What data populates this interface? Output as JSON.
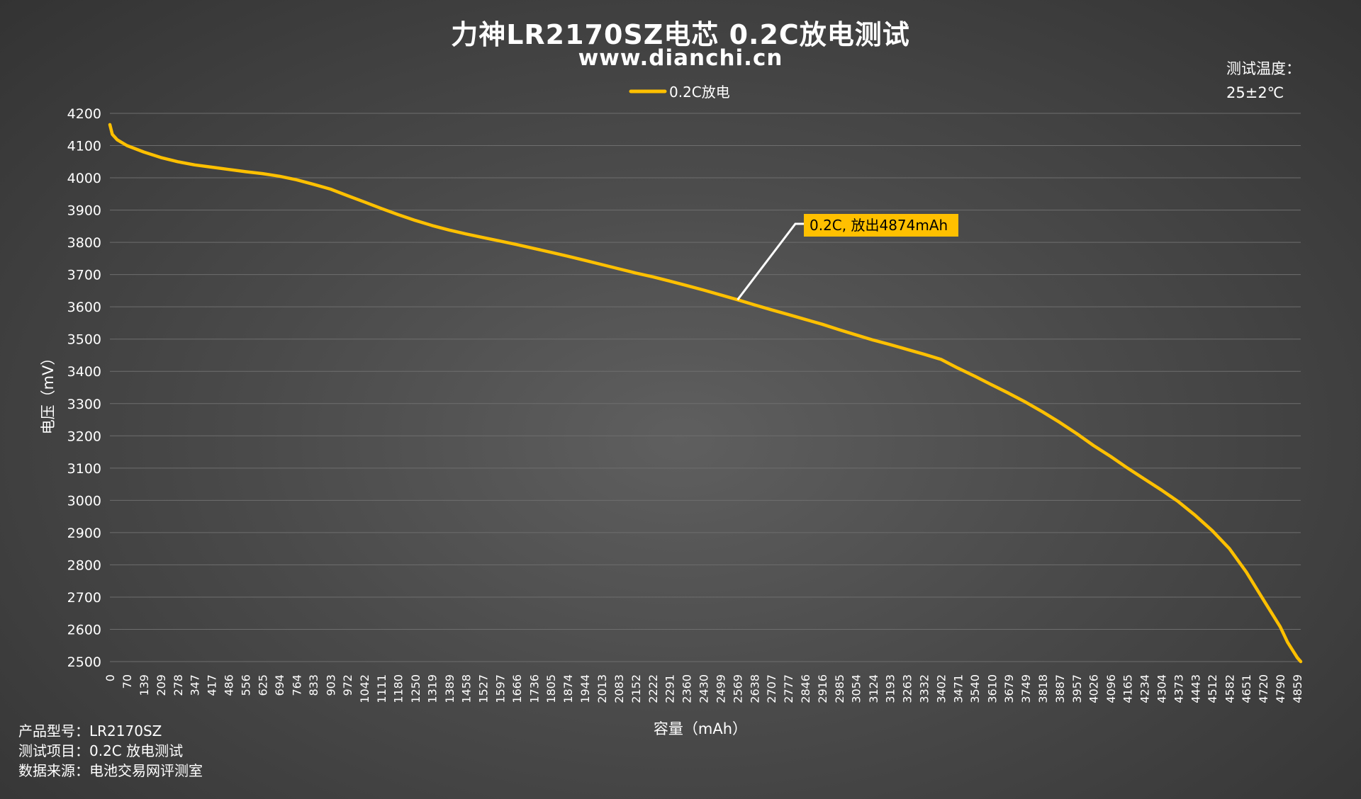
{
  "header": {
    "title": "力神LR2170SZ电芯 0.2C放电测试",
    "subtitle": "www.dianchi.cn"
  },
  "temperature": {
    "label": "测试温度：",
    "value": "25±2℃"
  },
  "info": [
    {
      "label": "产品型号：",
      "value": "LR2170SZ"
    },
    {
      "label": "测试项目：",
      "value": "0.2C 放电测试"
    },
    {
      "label": "数据来源：",
      "value": "电池交易网评测室"
    }
  ],
  "colors": {
    "series": "#ffc000",
    "grid": "#6e6e6e",
    "text": "#ffffff",
    "annotation_bg": "#ffc000",
    "annotation_text": "#000000"
  },
  "chart_data": {
    "type": "line",
    "title": "力神LR2170SZ电芯 0.2C放电测试",
    "xlabel": "容量（mAh）",
    "ylabel": "电压（mV）",
    "ylim": [
      2500,
      4200
    ],
    "xlim": [
      0,
      4874
    ],
    "grid": true,
    "legend_position": "top",
    "yticks": [
      2500,
      2600,
      2700,
      2800,
      2900,
      3000,
      3100,
      3200,
      3300,
      3400,
      3500,
      3600,
      3700,
      3800,
      3900,
      4000,
      4100,
      4200
    ],
    "xticks": [
      0,
      70,
      139,
      209,
      278,
      347,
      417,
      486,
      556,
      625,
      694,
      764,
      833,
      903,
      972,
      1042,
      1111,
      1180,
      1250,
      1319,
      1389,
      1458,
      1527,
      1597,
      1666,
      1736,
      1805,
      1874,
      1944,
      2013,
      2083,
      2152,
      2222,
      2291,
      2360,
      2430,
      2499,
      2569,
      2638,
      2707,
      2777,
      2846,
      2916,
      2985,
      3054,
      3124,
      3193,
      3263,
      3332,
      3402,
      3471,
      3540,
      3610,
      3679,
      3749,
      3818,
      3887,
      3957,
      4026,
      4096,
      4165,
      4234,
      4304,
      4373,
      4443,
      4512,
      4582,
      4651,
      4720,
      4790,
      4859
    ],
    "series": [
      {
        "name": "0.2C放电",
        "x": [
          0,
          10,
          30,
          70,
          139,
          209,
          278,
          347,
          417,
          486,
          556,
          625,
          694,
          764,
          833,
          903,
          972,
          1042,
          1111,
          1180,
          1250,
          1319,
          1389,
          1458,
          1527,
          1597,
          1666,
          1736,
          1805,
          1874,
          1944,
          2013,
          2083,
          2152,
          2222,
          2291,
          2360,
          2430,
          2499,
          2569,
          2638,
          2707,
          2777,
          2846,
          2916,
          2985,
          3054,
          3124,
          3193,
          3263,
          3332,
          3402,
          3471,
          3540,
          3610,
          3679,
          3749,
          3818,
          3887,
          3957,
          4026,
          4096,
          4165,
          4234,
          4304,
          4373,
          4443,
          4512,
          4582,
          4651,
          4720,
          4790,
          4820,
          4845,
          4860,
          4874
        ],
        "y": [
          4165,
          4135,
          4118,
          4100,
          4080,
          4063,
          4050,
          4040,
          4033,
          4026,
          4019,
          4013,
          4005,
          3994,
          3980,
          3965,
          3945,
          3925,
          3905,
          3886,
          3868,
          3852,
          3838,
          3826,
          3815,
          3804,
          3793,
          3781,
          3769,
          3757,
          3744,
          3731,
          3718,
          3705,
          3693,
          3680,
          3666,
          3652,
          3637,
          3622,
          3606,
          3591,
          3576,
          3561,
          3546,
          3529,
          3513,
          3497,
          3483,
          3468,
          3453,
          3437,
          3410,
          3385,
          3358,
          3332,
          3304,
          3274,
          3242,
          3207,
          3170,
          3136,
          3100,
          3066,
          3032,
          2996,
          2953,
          2906,
          2850,
          2778,
          2693,
          2608,
          2560,
          2530,
          2512,
          2500
        ]
      }
    ],
    "annotation": {
      "text": "0.2C, 放出4874mAh",
      "x": 2569,
      "y": 3622
    }
  }
}
